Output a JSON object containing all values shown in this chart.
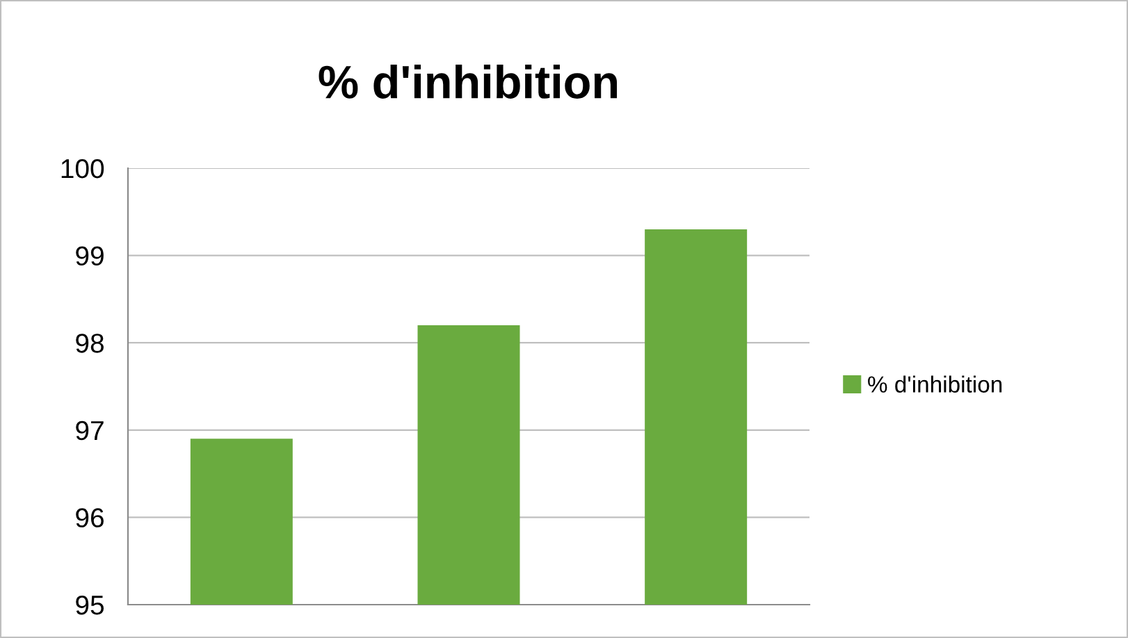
{
  "chart_data": {
    "type": "bar",
    "title": "% d'inhibition",
    "categories": [
      null,
      null,
      null
    ],
    "series": [
      {
        "name": "% d'inhibition",
        "color": "#6aab3f",
        "values": [
          96.9,
          98.2,
          99.3
        ]
      }
    ],
    "ylim": [
      95,
      100
    ],
    "yticks": [
      95,
      96,
      97,
      98,
      99,
      100
    ],
    "grid": "y",
    "legend": "right"
  }
}
